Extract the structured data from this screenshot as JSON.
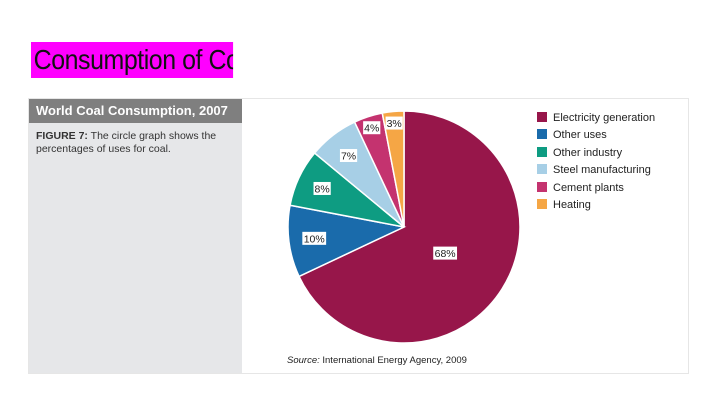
{
  "slide": {
    "title": "Consumption of Coal"
  },
  "figure": {
    "header": "World Coal Consumption, 2007",
    "caption_label": "FIGURE 7:",
    "caption_text": " The circle graph shows the percentages of uses for coal.",
    "source_label": "Source:",
    "source_text": " International Energy Agency, 2009"
  },
  "chart_data": {
    "type": "pie",
    "title": "World Coal Consumption, 2007",
    "unit": "%",
    "legend_position": "right",
    "slices": [
      {
        "label": "Electricity generation",
        "value": 68,
        "display": "68%",
        "color": "#97164a"
      },
      {
        "label": "Other uses",
        "value": 10,
        "display": "10%",
        "color": "#1a6bab"
      },
      {
        "label": "Other industry",
        "value": 8,
        "display": "8%",
        "color": "#0e9c82"
      },
      {
        "label": "Steel manufacturing",
        "value": 7,
        "display": "7%",
        "color": "#a7cfe6"
      },
      {
        "label": "Cement plants",
        "value": 4,
        "display": "4%",
        "color": "#c4336f"
      },
      {
        "label": "Heating",
        "value": 3,
        "display": "3%",
        "color": "#f5a645"
      }
    ]
  }
}
